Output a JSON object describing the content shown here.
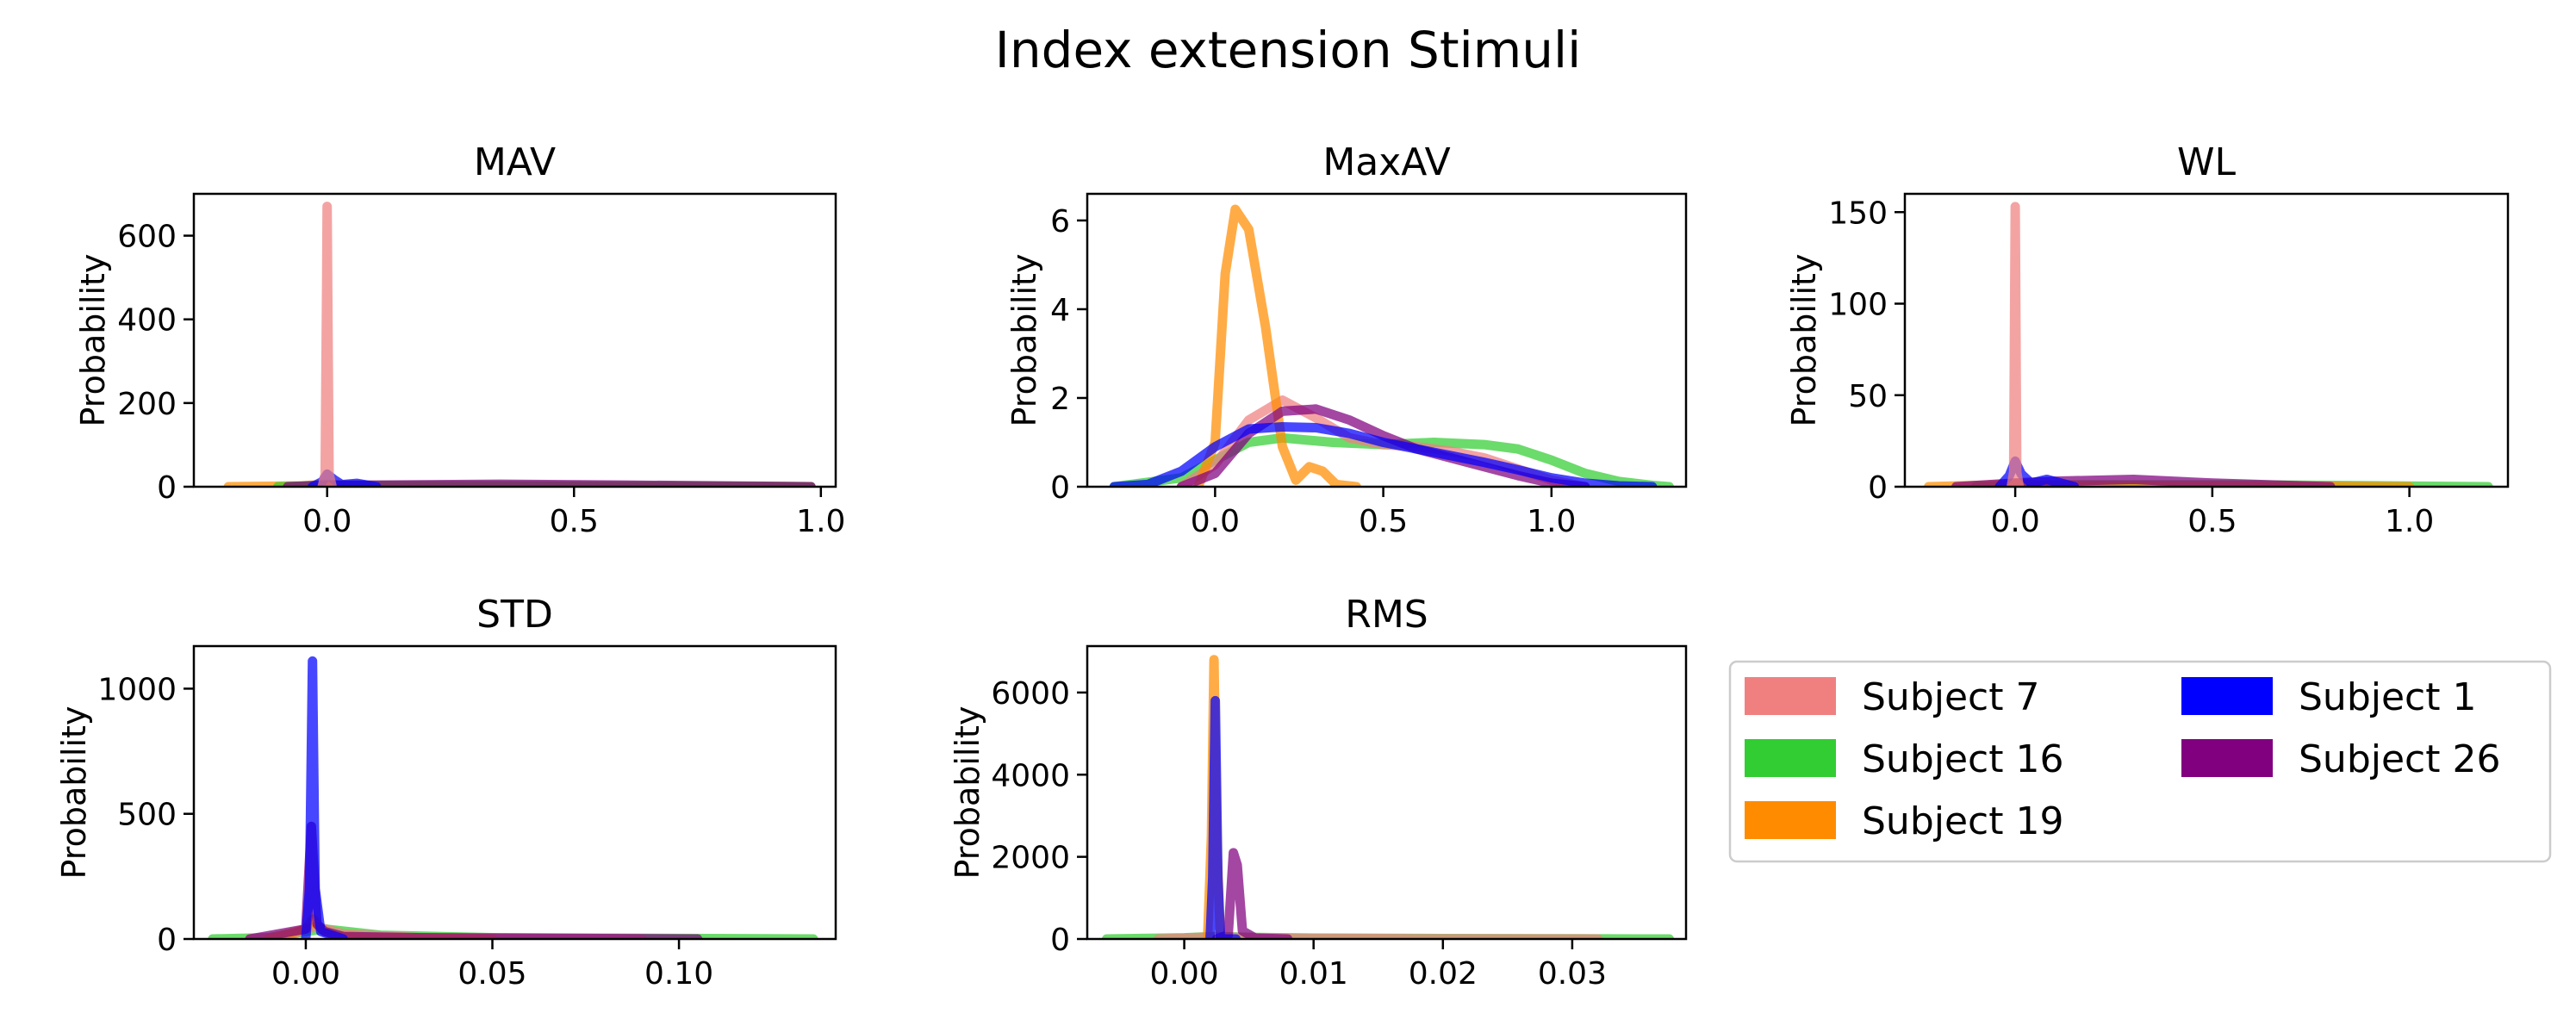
{
  "title": "Index extension Stimuli",
  "colors": {
    "Subject 7": "#f08080",
    "Subject 16": "#32cd32",
    "Subject 19": "#ff8c00",
    "Subject 1": "#0000ff",
    "Subject 26": "#800080"
  },
  "legend": {
    "placement": "lower-right empty panel",
    "entries": [
      "Subject 7",
      "Subject 16",
      "Subject 19",
      "Subject 1",
      "Subject 26"
    ]
  },
  "chart_data": [
    {
      "type": "line",
      "title": "MAV",
      "ylabel": "Probability",
      "xlim": [
        -0.27,
        1.03
      ],
      "ylim": [
        0,
        700
      ],
      "xticks": [
        0.0,
        0.5,
        1.0
      ],
      "xtick_labels": [
        "0.0",
        "0.5",
        "1.0"
      ],
      "yticks": [
        0,
        200,
        400,
        600
      ],
      "ytick_labels": [
        "0",
        "200",
        "400",
        "600"
      ],
      "series": [
        {
          "name": "Subject 19",
          "x": [
            -0.2,
            -0.05,
            0.0,
            0.05,
            0.4,
            0.98
          ],
          "y": [
            0,
            2,
            6,
            2,
            1,
            0
          ]
        },
        {
          "name": "Subject 16",
          "x": [
            -0.1,
            0.0,
            0.3,
            0.6,
            0.98
          ],
          "y": [
            0,
            3,
            3,
            2,
            0
          ]
        },
        {
          "name": "Subject 26",
          "x": [
            -0.08,
            0.0,
            0.1,
            0.35,
            0.6,
            0.98
          ],
          "y": [
            0,
            4,
            4,
            6,
            4,
            0
          ]
        },
        {
          "name": "Subject 1",
          "x": [
            -0.03,
            -0.01,
            0.0,
            0.015,
            0.03,
            0.06,
            0.1
          ],
          "y": [
            0,
            12,
            30,
            16,
            5,
            8,
            0
          ]
        },
        {
          "name": "Subject 7",
          "x": [
            -0.01,
            -0.004,
            -0.001,
            0.0,
            0.001,
            0.004,
            0.01
          ],
          "y": [
            0,
            30,
            500,
            670,
            500,
            30,
            0
          ]
        }
      ]
    },
    {
      "type": "line",
      "title": "MaxAV",
      "ylabel": "Probability",
      "xlim": [
        -0.38,
        1.4
      ],
      "ylim": [
        0,
        6.6
      ],
      "xticks": [
        0.0,
        0.5,
        1.0
      ],
      "xtick_labels": [
        "0.0",
        "0.5",
        "1.0"
      ],
      "yticks": [
        0,
        2,
        4,
        6
      ],
      "ytick_labels": [
        "0",
        "2",
        "4",
        "6"
      ],
      "series": [
        {
          "name": "Subject 16",
          "x": [
            -0.3,
            -0.1,
            0.0,
            0.1,
            0.2,
            0.35,
            0.5,
            0.65,
            0.8,
            0.9,
            1.0,
            1.1,
            1.2,
            1.3,
            1.35
          ],
          "y": [
            0,
            0.2,
            0.6,
            1.0,
            1.1,
            1.0,
            0.95,
            1.0,
            0.95,
            0.85,
            0.6,
            0.3,
            0.12,
            0.03,
            0
          ]
        },
        {
          "name": "Subject 7",
          "x": [
            -0.1,
            0.0,
            0.1,
            0.2,
            0.3,
            0.4,
            0.5,
            0.6,
            0.7,
            0.8,
            0.9,
            1.0,
            1.1
          ],
          "y": [
            0,
            0.5,
            1.5,
            1.95,
            1.55,
            1.1,
            0.95,
            0.9,
            0.8,
            0.65,
            0.4,
            0.15,
            0
          ]
        },
        {
          "name": "Subject 19",
          "x": [
            -0.05,
            0.0,
            0.03,
            0.06,
            0.1,
            0.15,
            0.2,
            0.24,
            0.28,
            0.32,
            0.36,
            0.42
          ],
          "y": [
            0,
            1.0,
            4.8,
            6.25,
            5.8,
            3.6,
            0.9,
            0.15,
            0.45,
            0.35,
            0.05,
            0
          ]
        },
        {
          "name": "Subject 26",
          "x": [
            -0.1,
            0.0,
            0.1,
            0.2,
            0.3,
            0.4,
            0.5,
            0.6,
            0.7,
            0.8,
            0.9,
            1.0,
            1.1
          ],
          "y": [
            0,
            0.3,
            1.2,
            1.7,
            1.75,
            1.5,
            1.15,
            0.85,
            0.65,
            0.45,
            0.25,
            0.08,
            0
          ]
        },
        {
          "name": "Subject 1",
          "x": [
            -0.3,
            -0.2,
            -0.1,
            0.0,
            0.1,
            0.2,
            0.3,
            0.4,
            0.5,
            0.6,
            0.7,
            0.8,
            0.9,
            1.0,
            1.1,
            1.2,
            1.3
          ],
          "y": [
            0,
            0.05,
            0.35,
            0.9,
            1.3,
            1.35,
            1.33,
            1.2,
            1.0,
            0.85,
            0.7,
            0.55,
            0.38,
            0.2,
            0.08,
            0.02,
            0
          ]
        }
      ]
    },
    {
      "type": "line",
      "title": "WL",
      "ylabel": "Probability",
      "xlim": [
        -0.28,
        1.25
      ],
      "ylim": [
        0,
        160
      ],
      "xticks": [
        0.0,
        0.5,
        1.0
      ],
      "xtick_labels": [
        "0.0",
        "0.5",
        "1.0"
      ],
      "yticks": [
        0,
        50,
        100,
        150
      ],
      "ytick_labels": [
        "0",
        "50",
        "100",
        "150"
      ],
      "series": [
        {
          "name": "Subject 16",
          "x": [
            -0.1,
            0.0,
            0.3,
            0.6,
            0.9,
            1.2
          ],
          "y": [
            0,
            1,
            1,
            1,
            0.5,
            0
          ]
        },
        {
          "name": "Subject 19",
          "x": [
            -0.22,
            -0.05,
            0.0,
            0.05,
            0.3,
            0.6,
            1.0
          ],
          "y": [
            0,
            1,
            2,
            1,
            0.5,
            0.5,
            0
          ]
        },
        {
          "name": "Subject 26",
          "x": [
            -0.15,
            0.0,
            0.1,
            0.3,
            0.5,
            0.8
          ],
          "y": [
            0,
            2,
            3,
            4,
            2,
            0
          ]
        },
        {
          "name": "Subject 1",
          "x": [
            -0.04,
            -0.015,
            0.0,
            0.015,
            0.04,
            0.08,
            0.15
          ],
          "y": [
            0,
            6,
            14,
            7,
            2,
            4,
            0
          ]
        },
        {
          "name": "Subject 7",
          "x": [
            -0.01,
            -0.004,
            -0.001,
            0.0,
            0.001,
            0.004,
            0.01
          ],
          "y": [
            0,
            8,
            115,
            153,
            115,
            8,
            0
          ]
        }
      ]
    },
    {
      "type": "line",
      "title": "STD",
      "ylabel": "Probability",
      "xlim": [
        -0.03,
        0.142
      ],
      "ylim": [
        0,
        1170
      ],
      "xticks": [
        0.0,
        0.05,
        0.1
      ],
      "xtick_labels": [
        "0.00",
        "0.05",
        "0.10"
      ],
      "yticks": [
        0,
        500,
        1000
      ],
      "ytick_labels": [
        "0",
        "500",
        "1000"
      ],
      "series": [
        {
          "name": "Subject 16",
          "x": [
            -0.025,
            -0.01,
            0.0,
            0.005,
            0.02,
            0.05,
            0.1,
            0.136
          ],
          "y": [
            0,
            5,
            30,
            40,
            15,
            5,
            2,
            0
          ]
        },
        {
          "name": "Subject 7",
          "x": [
            -0.015,
            -0.005,
            0.0,
            0.003,
            0.01,
            0.03,
            0.06,
            0.09
          ],
          "y": [
            0,
            10,
            40,
            50,
            20,
            5,
            2,
            0
          ]
        },
        {
          "name": "Subject 19",
          "x": [
            -0.01,
            0.0,
            0.002,
            0.004,
            0.008,
            0.02,
            0.05
          ],
          "y": [
            0,
            40,
            80,
            40,
            10,
            3,
            0
          ]
        },
        {
          "name": "Subject 26",
          "x": [
            -0.015,
            0.0,
            0.0015,
            0.003,
            0.005,
            0.01,
            0.03,
            0.105
          ],
          "y": [
            0,
            40,
            450,
            60,
            30,
            10,
            5,
            0
          ]
        },
        {
          "name": "Subject 1",
          "x": [
            0.0,
            0.001,
            0.0018,
            0.0025,
            0.004,
            0.006,
            0.01
          ],
          "y": [
            0,
            200,
            1110,
            200,
            30,
            20,
            0
          ]
        }
      ]
    },
    {
      "type": "line",
      "title": "RMS",
      "ylabel": "Probability",
      "xlim": [
        -0.0075,
        0.0388
      ],
      "ylim": [
        0,
        7130
      ],
      "xticks": [
        0.0,
        0.01,
        0.02,
        0.03
      ],
      "xtick_labels": [
        "0.00",
        "0.01",
        "0.02",
        "0.03"
      ],
      "yticks": [
        0,
        2000,
        4000,
        6000
      ],
      "ytick_labels": [
        "0",
        "2000",
        "4000",
        "6000"
      ],
      "series": [
        {
          "name": "Subject 16",
          "x": [
            -0.006,
            0.0,
            0.0025,
            0.005,
            0.01,
            0.02,
            0.03,
            0.0375
          ],
          "y": [
            0,
            30,
            60,
            40,
            20,
            10,
            5,
            0
          ]
        },
        {
          "name": "Subject 7",
          "x": [
            -0.002,
            0.0,
            0.002,
            0.004,
            0.008,
            0.02,
            0.032
          ],
          "y": [
            0,
            20,
            50,
            40,
            20,
            5,
            0
          ]
        },
        {
          "name": "Subject 19",
          "x": [
            0.0018,
            0.0021,
            0.0023,
            0.0025,
            0.0028
          ],
          "y": [
            0,
            2500,
            6800,
            2500,
            0
          ]
        },
        {
          "name": "Subject 26",
          "x": [
            0.0025,
            0.0034,
            0.0038,
            0.0041,
            0.0045,
            0.0055,
            0.008
          ],
          "y": [
            0,
            100,
            2100,
            1800,
            200,
            20,
            0
          ]
        },
        {
          "name": "Subject 1",
          "x": [
            0.002,
            0.0022,
            0.0024,
            0.0026,
            0.0028,
            0.004
          ],
          "y": [
            0,
            1500,
            5800,
            1500,
            0,
            0
          ]
        }
      ]
    }
  ]
}
